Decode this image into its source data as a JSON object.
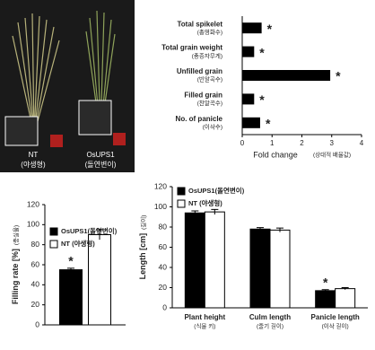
{
  "photo": {
    "labels": [
      {
        "name": "NT",
        "sub": "(야생형)"
      },
      {
        "name": "OsUPS1",
        "sub": "(돌연변이)"
      }
    ]
  },
  "chart_data": [
    {
      "type": "hbar",
      "categories": [
        "Total spikelet",
        "Total grain weight",
        "Unfilled grain",
        "Filled grain",
        "No. of panicle"
      ],
      "categories_ko": [
        "(총영화수)",
        "(총종자무게)",
        "(빈알곡수)",
        "(찬알곡수)",
        "(이삭수)"
      ],
      "values": [
        0.65,
        0.4,
        2.95,
        0.4,
        0.6
      ],
      "markers": [
        "*",
        "*",
        "*",
        "*",
        "*"
      ],
      "color": "#000000",
      "xlim": [
        0,
        4
      ],
      "xticks": [
        0,
        1,
        2,
        3,
        4
      ],
      "xlabel": "Fold change",
      "xlabel_ko": "(상대적 배율값)"
    },
    {
      "type": "bar",
      "categories": [
        null
      ],
      "series": [
        {
          "name": "OsUPS1(돌연변이)",
          "color": "#000000",
          "values": [
            55
          ],
          "errors": [
            1.5
          ],
          "markers": [
            "*"
          ]
        },
        {
          "name": "NT (야생형)",
          "color": "#ffffff",
          "values": [
            90
          ],
          "errors": [
            5
          ],
          "markers": [
            null
          ]
        }
      ],
      "ylim": [
        0,
        120
      ],
      "yticks": [
        0,
        20,
        40,
        60,
        80,
        100,
        120
      ],
      "ylabel": "Filling rate [%]",
      "ylabel_ko": "(충실율)"
    },
    {
      "type": "bar",
      "categories": [
        "Plant height",
        "Culm length",
        "Panicle length"
      ],
      "categories_ko": [
        "(식물 키)",
        "(줄기 길이)",
        "(이삭 길이)"
      ],
      "series": [
        {
          "name": "OsUPS1(돌연변이)",
          "color": "#000000",
          "values": [
            94,
            78,
            17
          ],
          "errors": [
            2,
            1.5,
            1
          ],
          "markers": [
            null,
            null,
            "*"
          ]
        },
        {
          "name": "NT (야생형)",
          "color": "#ffffff",
          "values": [
            95,
            77,
            19
          ],
          "errors": [
            2.5,
            2,
            1
          ],
          "markers": [
            null,
            null,
            null
          ]
        }
      ],
      "ylim": [
        0,
        120
      ],
      "yticks": [
        0,
        20,
        40,
        60,
        80,
        100,
        120
      ],
      "ylabel": "Length [cm]",
      "ylabel_ko": "(길이)"
    }
  ]
}
